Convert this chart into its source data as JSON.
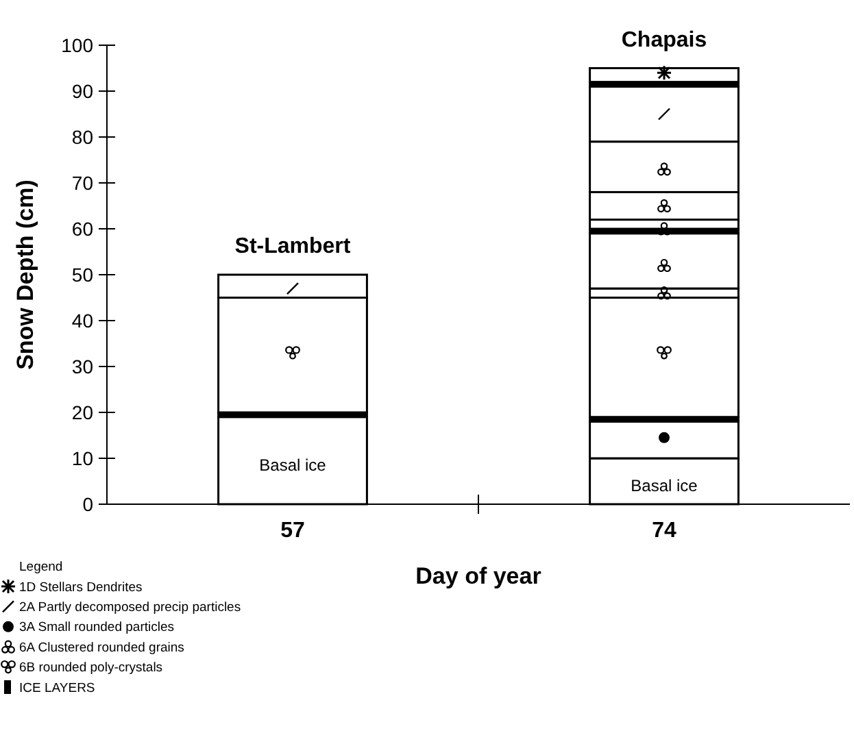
{
  "chart_data": {
    "type": "bar",
    "stacked": true,
    "xlabel": "Day of year",
    "ylabel": "Snow Depth (cm)",
    "categories": [
      "57",
      "74"
    ],
    "ylim": [
      0,
      100
    ],
    "yticks": [
      0,
      10,
      20,
      30,
      40,
      50,
      60,
      70,
      80,
      90,
      100
    ],
    "legend": "bottom left",
    "legend_title": "Legend",
    "series": [
      {
        "values": [
          19,
          10
        ],
        "colors": [
          "#ffffff",
          "#ffffff"
        ]
      },
      {
        "values": [
          1,
          8
        ],
        "colors": [
          "#000000",
          "#ffffff"
        ]
      },
      {
        "values": [
          25,
          1
        ],
        "colors": [
          "#ffffff",
          "#000000"
        ]
      },
      {
        "values": [
          5,
          26
        ],
        "colors": [
          "#ffffff",
          "#ffffff"
        ]
      },
      {
        "values": [
          null,
          2
        ],
        "colors": [
          "#ffffff",
          "#ffffff"
        ]
      },
      {
        "values": [
          null,
          12
        ],
        "colors": [
          "#ffffff",
          "#ffffff"
        ]
      },
      {
        "values": [
          null,
          1
        ],
        "colors": [
          "#ffffff",
          "#000000"
        ]
      },
      {
        "values": [
          null,
          2
        ],
        "colors": [
          "#ffffff",
          "#ffffff"
        ]
      },
      {
        "values": [
          null,
          6
        ],
        "colors": [
          "#ffffff",
          "#ffffff"
        ]
      },
      {
        "values": [
          null,
          11
        ],
        "colors": [
          "#ffffff",
          "#ffffff"
        ]
      },
      {
        "values": [
          null,
          12
        ],
        "colors": [
          "#ffffff",
          "#ffffff"
        ]
      },
      {
        "values": [
          null,
          1
        ],
        "colors": [
          "#ffffff",
          "#000000"
        ]
      },
      {
        "values": [
          null,
          3
        ],
        "colors": [
          "#ffffff",
          "#ffffff"
        ]
      },
      {
        "type": "scatter",
        "name": "1D Stellars Dendrites",
        "color": "#000000",
        "x": [
          "74"
        ],
        "values": [
          94
        ]
      },
      {
        "type": "scatter",
        "name": "2A Partly decomposed precip  particles",
        "color": "#000000",
        "x": [
          "57",
          "74"
        ],
        "values": [
          47,
          85
        ]
      },
      {
        "type": "scatter",
        "name": "3A Small rounded particles",
        "color": "#000000",
        "x": [
          "74"
        ],
        "values": [
          14.5
        ]
      },
      {
        "type": "scatter",
        "name": "6A Clustered rounded grains",
        "color": "#000000",
        "x": [
          "74",
          "74",
          "74",
          "74",
          "74"
        ],
        "values": [
          46,
          52,
          60,
          65,
          73
        ]
      },
      {
        "type": "scatter",
        "name": "6B rounded poly-crystals",
        "color": "#000000",
        "x": [
          "57",
          "74"
        ],
        "values": [
          33,
          33
        ]
      }
    ],
    "annotations": [
      {
        "text": "St-Lambert",
        "x": "57",
        "y": 50
      },
      {
        "text": "Chapais",
        "x": "74",
        "y": 95
      },
      {
        "text": "Basal ice",
        "x": "57",
        "y": 19
      },
      {
        "text": "Basal ice",
        "x": "74",
        "y": 10
      },
      "ICE LAYERS"
    ]
  }
}
